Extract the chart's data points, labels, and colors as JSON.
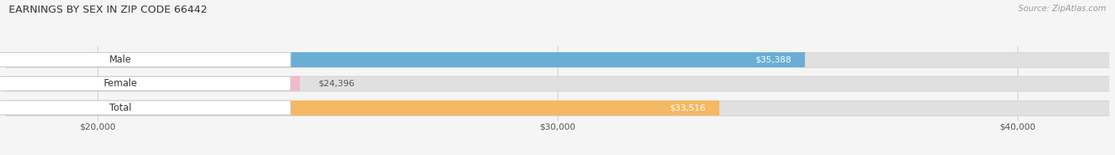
{
  "title": "EARNINGS BY SEX IN ZIP CODE 66442",
  "source": "Source: ZipAtlas.com",
  "categories": [
    "Male",
    "Female",
    "Total"
  ],
  "values": [
    35388,
    24396,
    33516
  ],
  "bar_colors": [
    "#6aaed6",
    "#f4b8cc",
    "#f5b863"
  ],
  "bar_bg_color": "#e0e0e0",
  "label_bg_color": "#ffffff",
  "xmin": 18000,
  "xmax": 42000,
  "xticks": [
    20000,
    30000,
    40000
  ],
  "xtick_labels": [
    "$20,000",
    "$30,000",
    "$40,000"
  ],
  "value_labels": [
    "$35,388",
    "$24,396",
    "$33,516"
  ],
  "bg_color": "#f5f5f5",
  "bar_height": 0.62,
  "title_fontsize": 9.5,
  "source_fontsize": 7.5,
  "label_fontsize": 8.5,
  "value_fontsize": 8,
  "tick_fontsize": 8
}
